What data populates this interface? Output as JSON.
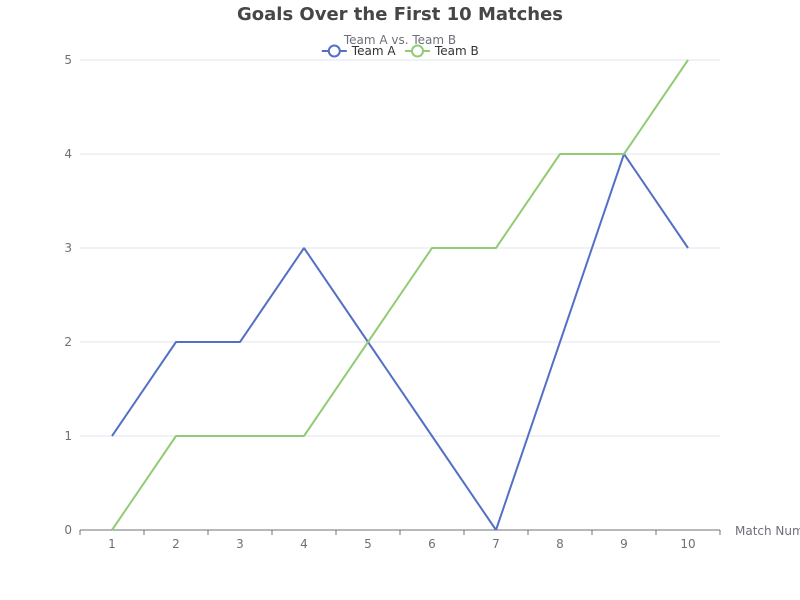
{
  "chart_data": {
    "type": "line",
    "title": "Goals Over the First 10 Matches",
    "subtitle": "Team A vs. Team B",
    "xlabel": "Match Number",
    "ylabel": "",
    "categories": [
      "1",
      "2",
      "3",
      "4",
      "5",
      "6",
      "7",
      "8",
      "9",
      "10"
    ],
    "ylim": [
      0,
      5
    ],
    "yticks": [
      "0",
      "1",
      "2",
      "3",
      "4",
      "5"
    ],
    "grid": true,
    "legend_position": "top-center",
    "series": [
      {
        "name": "Team A",
        "color": "#5470c6",
        "values": [
          1,
          2,
          2,
          3,
          2,
          1,
          0,
          2,
          4,
          3
        ]
      },
      {
        "name": "Team B",
        "color": "#91cc75",
        "values": [
          0,
          1,
          1,
          1,
          2,
          3,
          3,
          4,
          4,
          5
        ]
      }
    ]
  }
}
